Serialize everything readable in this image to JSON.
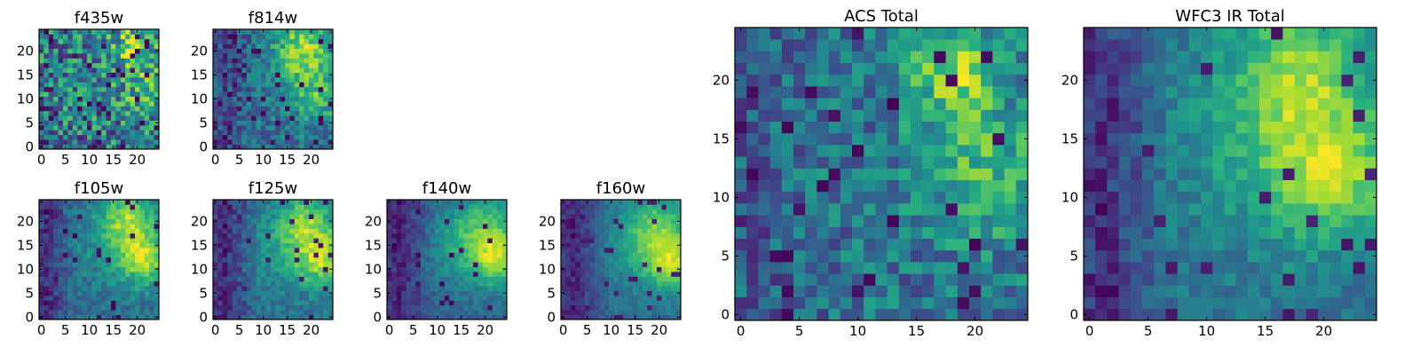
{
  "chart_data": [
    {
      "type": "heatmap",
      "title": "f435w",
      "xticks": [
        "0",
        "5",
        "10",
        "15",
        "20"
      ],
      "yticks": [
        "0",
        "5",
        "10",
        "15",
        "20"
      ],
      "xlim": [
        -0.5,
        24.5
      ],
      "ylim": [
        -0.5,
        24.5
      ],
      "grid": false,
      "colormap": "viridis",
      "seed": 11,
      "structure": {
        "noise": 0.75,
        "blobs": [
          {
            "x": 19,
            "y": 21,
            "amp": 0.35,
            "s": 4
          },
          {
            "x": 22,
            "y": 12,
            "amp": 0.25,
            "s": 4
          }
        ],
        "lowcols": [],
        "dark_rate": 0.06
      }
    },
    {
      "type": "heatmap",
      "title": "f814w",
      "xticks": [
        "0",
        "5",
        "10",
        "15",
        "20"
      ],
      "yticks": [
        "0",
        "5",
        "10",
        "15",
        "20"
      ],
      "xlim": [
        -0.5,
        24.5
      ],
      "ylim": [
        -0.5,
        24.5
      ],
      "grid": false,
      "colormap": "viridis",
      "seed": 23,
      "structure": {
        "noise": 0.45,
        "blobs": [
          {
            "x": 18,
            "y": 21,
            "amp": 0.55,
            "s": 4
          },
          {
            "x": 21,
            "y": 12,
            "amp": 0.4,
            "s": 5
          }
        ],
        "lowcols": [
          {
            "x": 2,
            "w": 6,
            "amp": 0.3
          }
        ],
        "dark_rate": 0.05
      }
    },
    {
      "type": "heatmap",
      "title": "f105w",
      "xticks": [
        "0",
        "5",
        "10",
        "15",
        "20"
      ],
      "yticks": [
        "0",
        "5",
        "10",
        "15",
        "20"
      ],
      "xlim": [
        -0.5,
        24.5
      ],
      "ylim": [
        -0.5,
        24.5
      ],
      "grid": false,
      "colormap": "viridis",
      "seed": 37,
      "structure": {
        "noise": 0.3,
        "blobs": [
          {
            "x": 18,
            "y": 21,
            "amp": 0.55,
            "s": 4
          },
          {
            "x": 22,
            "y": 12,
            "amp": 0.6,
            "s": 4
          },
          {
            "x": 16,
            "y": 15,
            "amp": 0.25,
            "s": 6
          }
        ],
        "lowcols": [
          {
            "x": 1,
            "w": 6,
            "amp": 0.4
          }
        ],
        "dark_rate": 0.03
      }
    },
    {
      "type": "heatmap",
      "title": "f125w",
      "xticks": [
        "0",
        "5",
        "10",
        "15",
        "20"
      ],
      "yticks": [
        "0",
        "5",
        "10",
        "15",
        "20"
      ],
      "xlim": [
        -0.5,
        24.5
      ],
      "ylim": [
        -0.5,
        24.5
      ],
      "grid": false,
      "colormap": "viridis",
      "seed": 41,
      "structure": {
        "noise": 0.3,
        "blobs": [
          {
            "x": 19,
            "y": 20,
            "amp": 0.5,
            "s": 4
          },
          {
            "x": 23,
            "y": 12,
            "amp": 0.6,
            "s": 4
          },
          {
            "x": 16,
            "y": 14,
            "amp": 0.3,
            "s": 6
          }
        ],
        "lowcols": [
          {
            "x": 2,
            "w": 7,
            "amp": 0.45
          }
        ],
        "dark_rate": 0.04
      }
    },
    {
      "type": "heatmap",
      "title": "f140w",
      "xticks": [
        "0",
        "5",
        "10",
        "15",
        "20"
      ],
      "yticks": [
        "0",
        "5",
        "10",
        "15",
        "20"
      ],
      "xlim": [
        -0.5,
        24.5
      ],
      "ylim": [
        -0.5,
        24.5
      ],
      "grid": false,
      "colormap": "viridis",
      "seed": 53,
      "structure": {
        "noise": 0.25,
        "blobs": [
          {
            "x": 20,
            "y": 19,
            "amp": 0.45,
            "s": 5
          },
          {
            "x": 23,
            "y": 12,
            "amp": 0.6,
            "s": 4
          },
          {
            "x": 16,
            "y": 14,
            "amp": 0.3,
            "s": 6
          }
        ],
        "lowcols": [
          {
            "x": 2,
            "w": 8,
            "amp": 0.45
          }
        ],
        "dark_rate": 0.03
      }
    },
    {
      "type": "heatmap",
      "title": "f160w",
      "xticks": [
        "0",
        "5",
        "10",
        "15",
        "20"
      ],
      "yticks": [
        "0",
        "5",
        "10",
        "15",
        "20"
      ],
      "xlim": [
        -0.5,
        24.5
      ],
      "ylim": [
        -0.5,
        24.5
      ],
      "grid": false,
      "colormap": "viridis",
      "seed": 67,
      "structure": {
        "noise": 0.22,
        "blobs": [
          {
            "x": 20,
            "y": 19,
            "amp": 0.5,
            "s": 5
          },
          {
            "x": 23,
            "y": 11,
            "amp": 0.65,
            "s": 4
          },
          {
            "x": 17,
            "y": 14,
            "amp": 0.3,
            "s": 6
          }
        ],
        "lowcols": [
          {
            "x": 2,
            "w": 8,
            "amp": 0.5
          }
        ],
        "dark_rate": 0.04
      }
    },
    {
      "type": "heatmap",
      "title": "ACS Total",
      "xticks": [
        "0",
        "5",
        "10",
        "15",
        "20"
      ],
      "yticks": [
        "0",
        "5",
        "10",
        "15",
        "20"
      ],
      "xlim": [
        -0.5,
        24.5
      ],
      "ylim": [
        -0.5,
        24.5
      ],
      "grid": false,
      "colormap": "viridis",
      "seed": 79,
      "structure": {
        "noise": 0.5,
        "blobs": [
          {
            "x": 18,
            "y": 21,
            "amp": 0.55,
            "s": 3
          },
          {
            "x": 21,
            "y": 12,
            "amp": 0.4,
            "s": 4
          }
        ],
        "lowcols": [
          {
            "x": 1,
            "w": 5,
            "amp": 0.2
          }
        ],
        "dark_rate": 0.05
      }
    },
    {
      "type": "heatmap",
      "title": "WFC3 IR Total",
      "xticks": [
        "0",
        "5",
        "10",
        "15",
        "20"
      ],
      "yticks": [
        "0",
        "5",
        "10",
        "15",
        "20"
      ],
      "xlim": [
        -0.5,
        24.5
      ],
      "ylim": [
        -0.5,
        24.5
      ],
      "grid": false,
      "colormap": "viridis",
      "seed": 83,
      "structure": {
        "noise": 0.3,
        "blobs": [
          {
            "x": 18,
            "y": 21,
            "amp": 0.5,
            "s": 4
          },
          {
            "x": 21,
            "y": 12,
            "amp": 0.55,
            "s": 4
          },
          {
            "x": 16,
            "y": 15,
            "amp": 0.3,
            "s": 6
          }
        ],
        "lowcols": [
          {
            "x": 1,
            "w": 6,
            "amp": 0.5
          }
        ],
        "dark_rate": 0.03
      }
    }
  ]
}
